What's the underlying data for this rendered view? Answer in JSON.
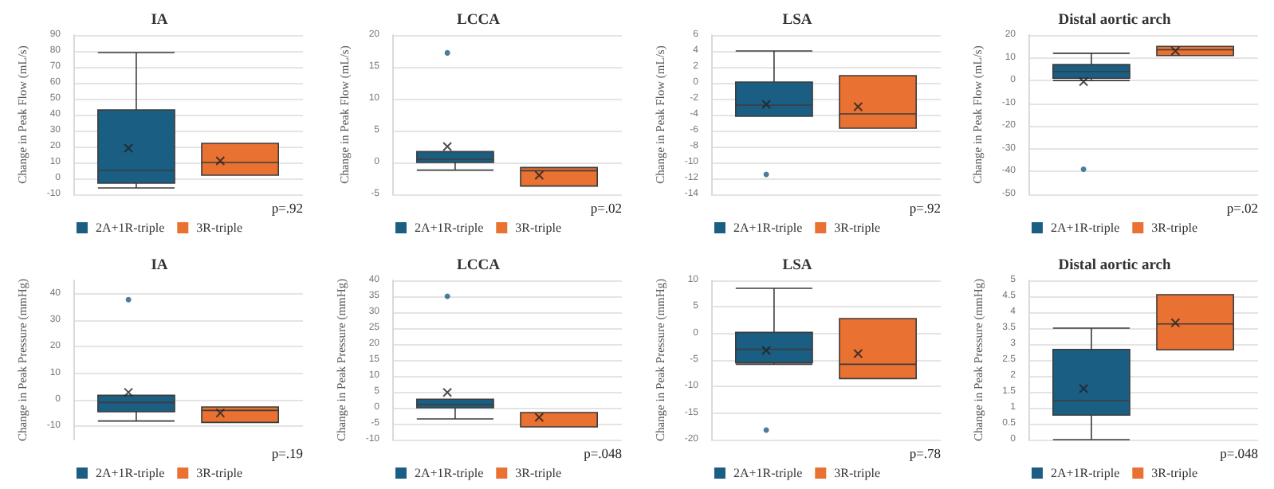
{
  "chart_data": [
    {
      "type": "box",
      "title": "IA",
      "ylabel": "Change in Peak Flow (mL/s)",
      "categories": [
        null
      ],
      "ylim": [
        -10,
        90
      ],
      "yticks": [
        -10,
        0,
        10,
        20,
        30,
        40,
        50,
        60,
        70,
        80,
        90
      ],
      "grid": "y",
      "legend": "bottom",
      "annotations": [
        "p=.92"
      ],
      "series": [
        {
          "name": "2A+1R-triple",
          "color": "#1b5e83",
          "boxes": [
            {
              "low": -6,
              "q1": -3,
              "median": 5,
              "q3": 43,
              "high": 79,
              "mean": 19
            }
          ]
        },
        {
          "name": "3R-triple",
          "color": "#e97132",
          "boxes": [
            {
              "low": 2,
              "q1": 2,
              "median": 10,
              "q3": 22,
              "high": 22,
              "mean": 11
            }
          ]
        }
      ]
    },
    {
      "type": "box",
      "title": "LCCA",
      "ylabel": "Change in Peak Flow (mL/s)",
      "categories": [
        null
      ],
      "ylim": [
        -5,
        20
      ],
      "yticks": [
        -5,
        0,
        5,
        10,
        15,
        20
      ],
      "grid": "y",
      "legend": "bottom",
      "annotations": [
        "p=.02"
      ],
      "series": [
        {
          "name": "2A+1R-triple",
          "color": "#1b5e83",
          "boxes": [
            {
              "low": -1.2,
              "q1": 0,
              "median": 0.5,
              "q3": 1.7,
              "high": 1.7,
              "mean": 2.5,
              "outliers": [
                17.2
              ]
            }
          ]
        },
        {
          "name": "3R-triple",
          "color": "#e97132",
          "boxes": [
            {
              "low": -3.7,
              "q1": -3.7,
              "median": -1.3,
              "q3": -0.8,
              "high": -0.8,
              "mean": -2
            }
          ]
        }
      ]
    },
    {
      "type": "box",
      "title": "LSA",
      "ylabel": "Change in Peak Flow (mL/s)",
      "categories": [
        null
      ],
      "ylim": [
        -14,
        6
      ],
      "yticks": [
        -14,
        -12,
        -10,
        -8,
        -6,
        -4,
        -2,
        0,
        2,
        4,
        6
      ],
      "grid": "y",
      "legend": "bottom",
      "annotations": [
        "p=.92"
      ],
      "series": [
        {
          "name": "2A+1R-triple",
          "color": "#1b5e83",
          "boxes": [
            {
              "low": -4.2,
              "q1": -4.2,
              "median": -2.8,
              "q3": 0.1,
              "high": 4,
              "mean": -2.7,
              "outliers": [
                -11.5
              ]
            }
          ]
        },
        {
          "name": "3R-triple",
          "color": "#e97132",
          "boxes": [
            {
              "low": -5.7,
              "q1": -5.7,
              "median": -3.9,
              "q3": 0.9,
              "high": 0.9,
              "mean": -3
            }
          ]
        }
      ]
    },
    {
      "type": "box",
      "title": "Distal aortic arch",
      "ylabel": "Change in Peak Flow (mL/s)",
      "categories": [
        null
      ],
      "ylim": [
        -50,
        20
      ],
      "yticks": [
        -50,
        -40,
        -30,
        -20,
        -10,
        0,
        10,
        20
      ],
      "grid": "y",
      "legend": "bottom",
      "annotations": [
        "p=.02"
      ],
      "series": [
        {
          "name": "2A+1R-triple",
          "color": "#1b5e83",
          "boxes": [
            {
              "low": 0,
              "q1": 1,
              "median": 4,
              "q3": 7,
              "high": 12,
              "mean": -0.5,
              "outliers": [
                -39
              ]
            }
          ]
        },
        {
          "name": "3R-triple",
          "color": "#e97132",
          "boxes": [
            {
              "low": 11,
              "q1": 11,
              "median": 13.5,
              "q3": 15,
              "high": 15,
              "mean": 13
            }
          ]
        }
      ]
    },
    {
      "type": "box",
      "title": "IA",
      "ylabel": "Change in Peak Pressure (mmHg)",
      "categories": [
        null
      ],
      "ylim": [
        -15,
        45
      ],
      "yticks": [
        -10,
        0,
        10,
        20,
        30,
        40
      ],
      "grid": "y",
      "legend": "bottom",
      "annotations": [
        "p=.19"
      ],
      "series": [
        {
          "name": "2A+1R-triple",
          "color": "#1b5e83",
          "boxes": [
            {
              "low": -8,
              "q1": -4.5,
              "median": -1,
              "q3": 1.7,
              "high": 1.7,
              "mean": 2.8,
              "outliers": [
                37.7
              ]
            }
          ]
        },
        {
          "name": "3R-triple",
          "color": "#e97132",
          "boxes": [
            {
              "low": -8.5,
              "q1": -8.5,
              "median": -4,
              "q3": -2.7,
              "high": -2.7,
              "mean": -5
            }
          ]
        }
      ]
    },
    {
      "type": "box",
      "title": "LCCA",
      "ylabel": "Change in Peak Pressure (mmHg)",
      "categories": [
        null
      ],
      "ylim": [
        -10,
        40
      ],
      "yticks": [
        -10,
        -5,
        0,
        5,
        10,
        15,
        20,
        25,
        30,
        35,
        40
      ],
      "grid": "y",
      "legend": "bottom",
      "annotations": [
        "p=.048"
      ],
      "series": [
        {
          "name": "2A+1R-triple",
          "color": "#1b5e83",
          "boxes": [
            {
              "low": -3.5,
              "q1": 0,
              "median": 1,
              "q3": 2.7,
              "high": 2.7,
              "mean": 4.8,
              "outliers": [
                35
              ]
            }
          ]
        },
        {
          "name": "3R-triple",
          "color": "#e97132",
          "boxes": [
            {
              "low": -6,
              "q1": -6,
              "median": -1.5,
              "q3": -1.5,
              "high": -1.5,
              "mean": -3
            }
          ]
        }
      ]
    },
    {
      "type": "box",
      "title": "LSA",
      "ylabel": "Change in Peak Pressure (mmHg)",
      "categories": [
        null
      ],
      "ylim": [
        -20,
        10
      ],
      "yticks": [
        -20,
        -15,
        -10,
        -5,
        0,
        5,
        10
      ],
      "grid": "y",
      "legend": "bottom",
      "annotations": [
        "p=.78"
      ],
      "series": [
        {
          "name": "2A+1R-triple",
          "color": "#1b5e83",
          "boxes": [
            {
              "low": -5.8,
              "q1": -5.5,
              "median": -3,
              "q3": 0.2,
              "high": 8.5,
              "mean": -3.2,
              "outliers": [
                -18.2
              ]
            }
          ]
        },
        {
          "name": "3R-triple",
          "color": "#e97132",
          "boxes": [
            {
              "low": -8.5,
              "q1": -8.5,
              "median": -5.8,
              "q3": 2.8,
              "high": 2.8,
              "mean": -3.8
            }
          ]
        }
      ]
    },
    {
      "type": "box",
      "title": "Distal aortic arch",
      "ylabel": "Change in Peak Pressure (mmHg)",
      "categories": [
        null
      ],
      "ylim": [
        0,
        5
      ],
      "yticks": [
        0,
        0.5,
        1,
        1.5,
        2,
        2.5,
        3,
        3.5,
        4,
        4.5,
        5
      ],
      "grid": "y",
      "legend": "bottom",
      "annotations": [
        "p=.048"
      ],
      "series": [
        {
          "name": "2A+1R-triple",
          "color": "#1b5e83",
          "boxes": [
            {
              "low": 0,
              "q1": 0.77,
              "median": 1.22,
              "q3": 2.83,
              "high": 3.5,
              "mean": 1.6
            }
          ]
        },
        {
          "name": "3R-triple",
          "color": "#e97132",
          "boxes": [
            {
              "low": 2.82,
              "q1": 2.82,
              "median": 3.63,
              "q3": 4.55,
              "high": 4.55,
              "mean": 3.67
            }
          ]
        }
      ]
    }
  ]
}
